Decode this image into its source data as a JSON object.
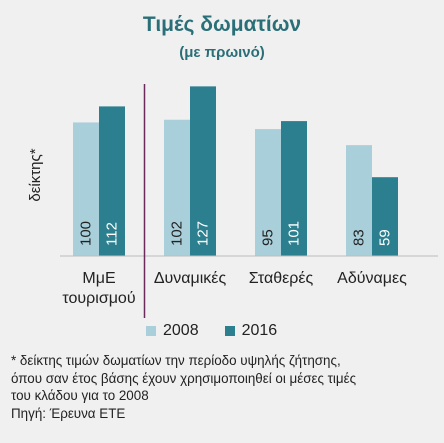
{
  "title": "Τιμές δωματίων",
  "subtitle": "(με πρωινό)",
  "chart_data": {
    "type": "bar",
    "categories": [
      "ΜμΕ τουρισμού",
      "Δυναμικές",
      "Σταθερές",
      "Αδύναμες"
    ],
    "category_lines": [
      [
        "ΜμΕ",
        "τουρισμού"
      ],
      [
        "Δυναμικές"
      ],
      [
        "Σταθερές"
      ],
      [
        "Αδύναμες"
      ]
    ],
    "series": [
      {
        "name": "2008",
        "values": [
          100,
          102,
          95,
          83
        ],
        "color": "#a9cfdb"
      },
      {
        "name": "2016",
        "values": [
          112,
          127,
          101,
          59
        ],
        "color": "#2c7f8e"
      }
    ],
    "ylabel": "δείκτης*",
    "ylim": [
      0,
      140
    ],
    "grid": false,
    "legend_position": "bottom",
    "separator_after_category": 0,
    "separator_color": "#6b2a5c"
  },
  "footnote": {
    "lines": [
      "* δείκτης τιμών δωματίων την περίοδο υψηλής ζήτησης,",
      "όπου σαν έτος βάσης έχουν χρησιμοποιηθεί οι μέσες τιμές",
      "του κλάδου για το 2008",
      "Πηγή: Έρευνα ΕΤΕ"
    ]
  }
}
